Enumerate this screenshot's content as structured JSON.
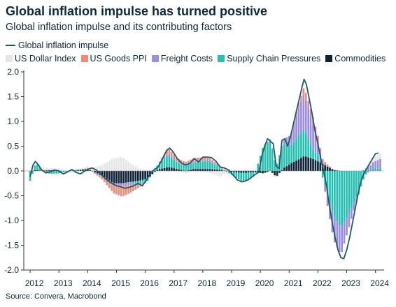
{
  "title": "Global inflation impulse has turned positive",
  "subtitle": "Global inflation impulse and its contributing factors",
  "source": "Source: Convera, Macrobond",
  "chart_data": {
    "type": "bar",
    "subtype": "stacked-bar-with-line",
    "line_series": {
      "name": "Global inflation impulse",
      "color": "#1d5c6b",
      "points": [
        [
          2012.0,
          -0.12
        ],
        [
          2012.05,
          0.0
        ],
        [
          2012.1,
          0.12
        ],
        [
          2012.18,
          0.19
        ],
        [
          2012.28,
          0.13
        ],
        [
          2012.4,
          0.02
        ],
        [
          2012.55,
          -0.04
        ],
        [
          2012.7,
          -0.02
        ],
        [
          2012.85,
          0.02
        ],
        [
          2013.0,
          0.0
        ],
        [
          2013.15,
          -0.06
        ],
        [
          2013.3,
          -0.02
        ],
        [
          2013.45,
          0.03
        ],
        [
          2013.6,
          -0.03
        ],
        [
          2013.75,
          -0.06
        ],
        [
          2013.9,
          0.0
        ],
        [
          2014.0,
          0.03
        ],
        [
          2014.15,
          0.06
        ],
        [
          2014.3,
          0.02
        ],
        [
          2014.45,
          -0.06
        ],
        [
          2014.6,
          -0.15
        ],
        [
          2014.75,
          -0.22
        ],
        [
          2014.9,
          -0.27
        ],
        [
          2015.0,
          -0.3
        ],
        [
          2015.15,
          -0.32
        ],
        [
          2015.3,
          -0.35
        ],
        [
          2015.45,
          -0.33
        ],
        [
          2015.6,
          -0.3
        ],
        [
          2015.75,
          -0.25
        ],
        [
          2015.9,
          -0.3
        ],
        [
          2016.0,
          -0.22
        ],
        [
          2016.15,
          -0.08
        ],
        [
          2016.3,
          0.02
        ],
        [
          2016.45,
          0.08
        ],
        [
          2016.6,
          0.25
        ],
        [
          2016.75,
          0.42
        ],
        [
          2016.85,
          0.46
        ],
        [
          2016.95,
          0.4
        ],
        [
          2017.1,
          0.26
        ],
        [
          2017.25,
          0.16
        ],
        [
          2017.4,
          0.12
        ],
        [
          2017.55,
          0.15
        ],
        [
          2017.7,
          0.25
        ],
        [
          2017.85,
          0.18
        ],
        [
          2018.0,
          0.28
        ],
        [
          2018.15,
          0.28
        ],
        [
          2018.3,
          0.27
        ],
        [
          2018.45,
          0.2
        ],
        [
          2018.6,
          0.08
        ],
        [
          2018.75,
          0.06
        ],
        [
          2018.9,
          0.02
        ],
        [
          2019.05,
          -0.08
        ],
        [
          2019.2,
          -0.18
        ],
        [
          2019.35,
          -0.22
        ],
        [
          2019.5,
          -0.2
        ],
        [
          2019.65,
          -0.15
        ],
        [
          2019.8,
          -0.08
        ],
        [
          2019.95,
          -0.02
        ],
        [
          2020.05,
          0.3
        ],
        [
          2020.15,
          0.5
        ],
        [
          2020.25,
          0.65
        ],
        [
          2020.35,
          0.6
        ],
        [
          2020.45,
          0.55
        ],
        [
          2020.55,
          0.1
        ],
        [
          2020.65,
          0.05
        ],
        [
          2020.75,
          0.62
        ],
        [
          2020.85,
          0.65
        ],
        [
          2020.95,
          0.5
        ],
        [
          2021.05,
          0.7
        ],
        [
          2021.15,
          0.95
        ],
        [
          2021.25,
          1.2
        ],
        [
          2021.35,
          1.45
        ],
        [
          2021.45,
          1.7
        ],
        [
          2021.52,
          1.85
        ],
        [
          2021.6,
          1.75
        ],
        [
          2021.7,
          1.45
        ],
        [
          2021.8,
          1.15
        ],
        [
          2021.9,
          0.8
        ],
        [
          2022.0,
          0.55
        ],
        [
          2022.1,
          0.25
        ],
        [
          2022.2,
          0.0
        ],
        [
          2022.3,
          -0.3
        ],
        [
          2022.4,
          -0.7
        ],
        [
          2022.5,
          -1.05
        ],
        [
          2022.6,
          -1.35
        ],
        [
          2022.7,
          -1.6
        ],
        [
          2022.8,
          -1.75
        ],
        [
          2022.9,
          -1.77
        ],
        [
          2023.0,
          -1.6
        ],
        [
          2023.1,
          -1.35
        ],
        [
          2023.2,
          -1.05
        ],
        [
          2023.3,
          -0.75
        ],
        [
          2023.4,
          -0.45
        ],
        [
          2023.5,
          -0.2
        ],
        [
          2023.6,
          -0.05
        ],
        [
          2023.7,
          0.05
        ],
        [
          2023.8,
          0.15
        ],
        [
          2023.9,
          0.25
        ],
        [
          2024.0,
          0.35
        ],
        [
          2024.1,
          0.36
        ]
      ]
    },
    "series": [
      {
        "name": "US Dollar Index",
        "color": "#e6e6e6"
      },
      {
        "name": "US Goods PPI",
        "color": "#f08a78"
      },
      {
        "name": "Freight Costs",
        "color": "#9b8de6"
      },
      {
        "name": "Supply Chain Pressures",
        "color": "#22c1b0"
      },
      {
        "name": "Commodities",
        "color": "#0f2238"
      }
    ],
    "anchors": [
      {
        "x": 2012.0,
        "values": [
          0.0,
          0.0,
          0.0,
          -0.2,
          0.0
        ]
      },
      {
        "x": 2012.2,
        "values": [
          0.03,
          0.0,
          0.0,
          0.15,
          0.02
        ]
      },
      {
        "x": 2012.4,
        "values": [
          0.05,
          0.02,
          0.0,
          0.0,
          0.0
        ]
      },
      {
        "x": 2012.7,
        "values": [
          0.04,
          0.0,
          0.0,
          -0.06,
          0.02
        ]
      },
      {
        "x": 2013.0,
        "values": [
          0.05,
          0.0,
          0.0,
          -0.05,
          0.0
        ]
      },
      {
        "x": 2013.5,
        "values": [
          -0.03,
          0.0,
          0.0,
          0.02,
          0.0
        ]
      },
      {
        "x": 2014.0,
        "values": [
          0.04,
          0.02,
          0.0,
          0.0,
          0.04
        ]
      },
      {
        "x": 2014.5,
        "values": [
          0.12,
          -0.05,
          -0.02,
          0.0,
          -0.1
        ]
      },
      {
        "x": 2014.9,
        "values": [
          0.26,
          -0.15,
          -0.05,
          0.0,
          -0.25
        ]
      },
      {
        "x": 2015.2,
        "values": [
          0.28,
          -0.22,
          -0.05,
          0.0,
          -0.25
        ]
      },
      {
        "x": 2015.5,
        "values": [
          0.15,
          -0.15,
          -0.05,
          -0.02,
          -0.22
        ]
      },
      {
        "x": 2015.8,
        "values": [
          0.05,
          -0.05,
          -0.03,
          -0.05,
          -0.2
        ]
      },
      {
        "x": 2016.1,
        "values": [
          0.02,
          0.0,
          0.0,
          -0.05,
          -0.15
        ]
      },
      {
        "x": 2016.4,
        "values": [
          0.0,
          0.0,
          0.0,
          0.08,
          0.02
        ]
      },
      {
        "x": 2016.8,
        "values": [
          0.02,
          0.1,
          0.04,
          0.24,
          0.08
        ]
      },
      {
        "x": 2017.1,
        "values": [
          0.0,
          0.08,
          0.02,
          0.12,
          0.04
        ]
      },
      {
        "x": 2017.4,
        "values": [
          -0.05,
          0.06,
          0.02,
          0.1,
          0.0
        ]
      },
      {
        "x": 2017.7,
        "values": [
          0.0,
          0.08,
          0.02,
          0.12,
          0.04
        ]
      },
      {
        "x": 2018.2,
        "values": [
          -0.03,
          0.06,
          0.02,
          0.16,
          0.04
        ]
      },
      {
        "x": 2018.6,
        "values": [
          -0.12,
          0.02,
          0.02,
          0.04,
          0.02
        ]
      },
      {
        "x": 2019.0,
        "values": [
          0.02,
          0.0,
          0.0,
          -0.06,
          -0.02
        ]
      },
      {
        "x": 2019.4,
        "values": [
          0.02,
          0.0,
          0.0,
          -0.18,
          -0.04
        ]
      },
      {
        "x": 2019.8,
        "values": [
          0.02,
          0.0,
          0.0,
          -0.08,
          -0.02
        ]
      },
      {
        "x": 2020.1,
        "values": [
          0.0,
          0.0,
          0.0,
          0.5,
          -0.05
        ]
      },
      {
        "x": 2020.35,
        "values": [
          0.0,
          0.0,
          0.05,
          0.6,
          0.0
        ]
      },
      {
        "x": 2020.55,
        "values": [
          -0.03,
          0.0,
          0.0,
          0.08,
          -0.12
        ]
      },
      {
        "x": 2020.8,
        "values": [
          0.0,
          0.0,
          0.1,
          0.5,
          0.05
        ]
      },
      {
        "x": 2021.05,
        "values": [
          0.0,
          0.02,
          0.2,
          0.35,
          0.15
        ]
      },
      {
        "x": 2021.3,
        "values": [
          0.0,
          0.1,
          0.55,
          0.45,
          0.22
        ]
      },
      {
        "x": 2021.52,
        "values": [
          0.0,
          0.15,
          0.7,
          0.55,
          0.3
        ]
      },
      {
        "x": 2021.8,
        "values": [
          0.0,
          0.15,
          0.55,
          0.2,
          0.25
        ]
      },
      {
        "x": 2022.05,
        "values": [
          0.0,
          0.12,
          0.2,
          0.1,
          0.18
        ]
      },
      {
        "x": 2022.3,
        "values": [
          0.0,
          0.05,
          -0.2,
          -0.4,
          0.1
        ]
      },
      {
        "x": 2022.55,
        "values": [
          0.0,
          0.0,
          -0.5,
          -0.9,
          0.02
        ]
      },
      {
        "x": 2022.8,
        "values": [
          0.0,
          0.0,
          -0.55,
          -1.15,
          0.0
        ]
      },
      {
        "x": 2023.05,
        "values": [
          0.0,
          0.0,
          -0.3,
          -0.9,
          0.0
        ]
      },
      {
        "x": 2023.35,
        "values": [
          0.0,
          0.0,
          -0.1,
          -0.5,
          0.0
        ]
      },
      {
        "x": 2023.65,
        "values": [
          0.0,
          0.0,
          0.05,
          -0.08,
          0.0
        ]
      },
      {
        "x": 2023.9,
        "values": [
          0.08,
          0.0,
          0.12,
          0.05,
          0.0
        ]
      },
      {
        "x": 2024.2,
        "values": [
          0.12,
          0.0,
          0.2,
          0.05,
          0.0
        ]
      }
    ],
    "xlim": [
      2011.78,
      2024.3
    ],
    "ylim": [
      -2.0,
      2.0
    ],
    "x_tick_labels": [
      "2012",
      "2013",
      "2014",
      "2015",
      "2016",
      "2017",
      "2018",
      "2019",
      "2020",
      "2021",
      "2022",
      "2023",
      "2024"
    ],
    "y_tick_labels": [
      "-2.0",
      "-1.5",
      "-1.0",
      "-0.5",
      "0.0",
      "0.5",
      "1.0",
      "1.5",
      "2.0"
    ],
    "legend_position": "top-left",
    "grid": false
  }
}
